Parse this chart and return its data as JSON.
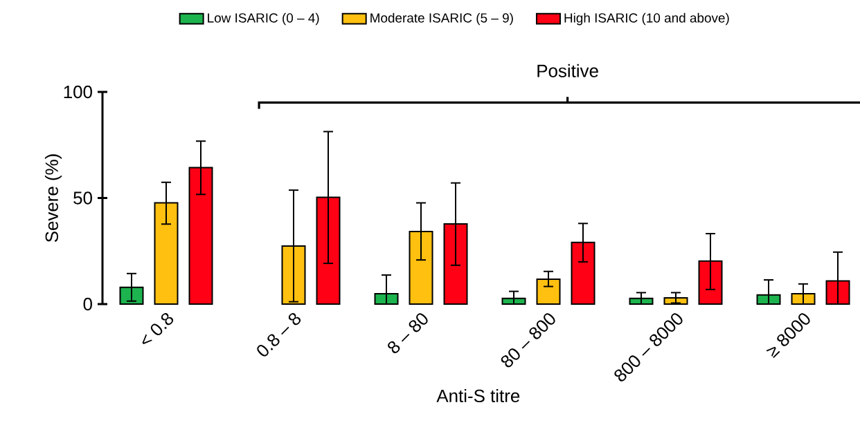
{
  "chart_data": {
    "type": "bar",
    "xlabel": "Anti-S titre",
    "ylabel": "Severe (%)",
    "categories": [
      "< 0.8",
      "0.8 – 8",
      "8 – 80",
      "80 – 800",
      "800 – 8000",
      "≥ 8000"
    ],
    "series": [
      {
        "name": "Low ISARIC (0 – 4)",
        "color": "#1db34f",
        "values": [
          7.9,
          null,
          4.9,
          2.7,
          2.7,
          4.3
        ],
        "errors": [
          [
            1.4,
            14.4
          ],
          null,
          [
            0,
            13.7
          ],
          [
            0,
            6.0
          ],
          [
            0,
            5.4
          ],
          [
            0,
            11.4
          ]
        ]
      },
      {
        "name": "Moderate ISARIC (5 – 9)",
        "color": "#ffc010",
        "values": [
          47.7,
          27.4,
          34.2,
          11.7,
          2.9,
          4.9
        ],
        "errors": [
          [
            37.7,
            57.4
          ],
          [
            1.1,
            53.7
          ],
          [
            20.8,
            47.7
          ],
          [
            8.3,
            15.4
          ],
          [
            0.5,
            5.4
          ],
          [
            0,
            9.5
          ]
        ]
      },
      {
        "name": "High ISARIC (10 and above)",
        "color": "#ff0015",
        "values": [
          64.3,
          50.3,
          37.8,
          29.1,
          20.3,
          10.9
        ],
        "errors": [
          [
            51.7,
            76.8
          ],
          [
            19.2,
            81.3
          ],
          [
            18.3,
            57.1
          ],
          [
            19.9,
            38.0
          ],
          [
            6.9,
            33.2
          ],
          [
            0,
            24.5
          ]
        ]
      }
    ],
    "ylim": [
      0,
      100
    ],
    "yticks": [
      0,
      50,
      100
    ],
    "legend": "top",
    "annotations": [
      "Positive"
    ]
  }
}
